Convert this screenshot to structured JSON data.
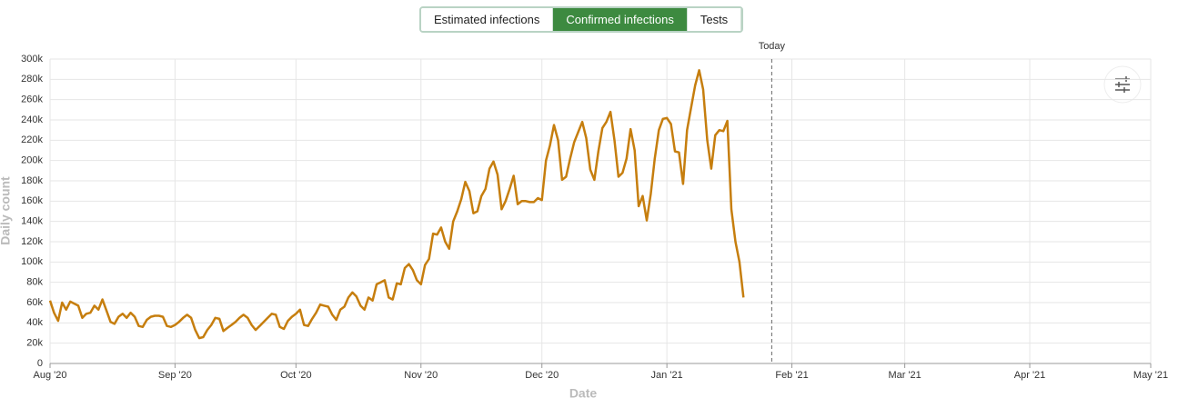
{
  "tabs": [
    {
      "label": "Estimated infections",
      "active": false
    },
    {
      "label": "Confirmed infections",
      "active": true
    },
    {
      "label": "Tests",
      "active": false
    }
  ],
  "chart_data": {
    "type": "line",
    "x_label": "Date",
    "y_label": "Daily count",
    "color": "#c67e0e",
    "grid": true,
    "today": {
      "x": 179,
      "label": "Today"
    },
    "xlim": [
      0,
      273
    ],
    "xticks": [
      {
        "value": 0,
        "label": "Aug '20"
      },
      {
        "value": 31,
        "label": "Sep '20"
      },
      {
        "value": 61,
        "label": "Oct '20"
      },
      {
        "value": 92,
        "label": "Nov '20"
      },
      {
        "value": 122,
        "label": "Dec '20"
      },
      {
        "value": 153,
        "label": "Jan '21"
      },
      {
        "value": 184,
        "label": "Feb '21"
      },
      {
        "value": 212,
        "label": "Mar '21"
      },
      {
        "value": 243,
        "label": "Apr '21"
      },
      {
        "value": 273,
        "label": "May '21"
      }
    ],
    "ylim": [
      0,
      300000
    ],
    "yticks": [
      0,
      {
        "value": 20000,
        "label": "20k"
      },
      {
        "value": 40000,
        "label": "40k"
      },
      {
        "value": 60000,
        "label": "60k"
      },
      {
        "value": 80000,
        "label": "80k"
      },
      {
        "value": 100000,
        "label": "100k"
      },
      {
        "value": 120000,
        "label": "120k"
      },
      {
        "value": 140000,
        "label": "140k"
      },
      {
        "value": 160000,
        "label": "160k"
      },
      {
        "value": 180000,
        "label": "180k"
      },
      {
        "value": 200000,
        "label": "200k"
      },
      {
        "value": 220000,
        "label": "220k"
      },
      {
        "value": 240000,
        "label": "240k"
      },
      {
        "value": 260000,
        "label": "260k"
      },
      {
        "value": 280000,
        "label": "280k"
      },
      {
        "value": 300000,
        "label": "300k"
      }
    ],
    "x": [
      0,
      1,
      2,
      3,
      4,
      5,
      6,
      7,
      8,
      9,
      10,
      11,
      12,
      13,
      14,
      15,
      16,
      17,
      18,
      19,
      20,
      21,
      22,
      23,
      24,
      25,
      26,
      27,
      28,
      29,
      30,
      31,
      32,
      33,
      34,
      35,
      36,
      37,
      38,
      39,
      40,
      41,
      42,
      43,
      44,
      45,
      46,
      47,
      48,
      49,
      50,
      51,
      52,
      53,
      54,
      55,
      56,
      57,
      58,
      59,
      60,
      61,
      62,
      63,
      64,
      65,
      66,
      67,
      68,
      69,
      70,
      71,
      72,
      73,
      74,
      75,
      76,
      77,
      78,
      79,
      80,
      81,
      82,
      83,
      84,
      85,
      86,
      87,
      88,
      89,
      90,
      91,
      92,
      93,
      94,
      95,
      96,
      97,
      98,
      99,
      100,
      101,
      102,
      103,
      104,
      105,
      106,
      107,
      108,
      109,
      110,
      111,
      112,
      113,
      114,
      115,
      116,
      117,
      118,
      119,
      120,
      121,
      122,
      123,
      124,
      125,
      126,
      127,
      128,
      129,
      130,
      131,
      132,
      133,
      134,
      135,
      136,
      137,
      138,
      139,
      140,
      141,
      142,
      143,
      144,
      145,
      146,
      147,
      148,
      149,
      150,
      151,
      152,
      153,
      154,
      155,
      156,
      157,
      158,
      159,
      160,
      161,
      162,
      163,
      164,
      165,
      166,
      167,
      168,
      169,
      170,
      171,
      172
    ],
    "values": [
      62000,
      50000,
      42000,
      60000,
      53000,
      61000,
      59000,
      57000,
      45000,
      49000,
      50000,
      57000,
      53000,
      63000,
      52000,
      41000,
      39000,
      46000,
      49000,
      45000,
      50000,
      46000,
      37000,
      36000,
      43000,
      46000,
      47000,
      47000,
      46000,
      37000,
      36000,
      38000,
      41000,
      45000,
      48000,
      45000,
      33000,
      25000,
      26000,
      33000,
      38000,
      45000,
      44000,
      32000,
      35000,
      38000,
      41000,
      45000,
      48000,
      45000,
      38000,
      33000,
      37000,
      41000,
      45000,
      49000,
      48000,
      36000,
      34000,
      42000,
      46000,
      49000,
      53000,
      38000,
      37000,
      44000,
      50000,
      58000,
      57000,
      56000,
      48000,
      43000,
      53000,
      56000,
      65000,
      70000,
      66000,
      57000,
      53000,
      65000,
      62000,
      78000,
      80000,
      82000,
      65000,
      63000,
      79000,
      78000,
      94000,
      98000,
      92000,
      82000,
      78000,
      97000,
      103000,
      128000,
      127000,
      134000,
      120000,
      113000,
      140000,
      150000,
      162000,
      179000,
      170000,
      148000,
      150000,
      165000,
      172000,
      192000,
      199000,
      186000,
      152000,
      160000,
      172000,
      185000,
      157000,
      160000,
      160000,
      159000,
      159000,
      163000,
      161000,
      200000,
      215000,
      235000,
      220000,
      181000,
      184000,
      202000,
      218000,
      228000,
      238000,
      222000,
      191000,
      181000,
      209000,
      232000,
      238000,
      248000,
      220000,
      184000,
      188000,
      202000,
      231000,
      210000,
      155000,
      165000,
      141000,
      167000,
      202000,
      230000,
      241000,
      242000,
      236000,
      209000,
      208000,
      177000,
      230000,
      252000,
      274000,
      289000,
      270000,
      220000,
      192000,
      225000,
      230000,
      229000,
      239000,
      152000,
      120000,
      100000,
      65000
    ]
  }
}
